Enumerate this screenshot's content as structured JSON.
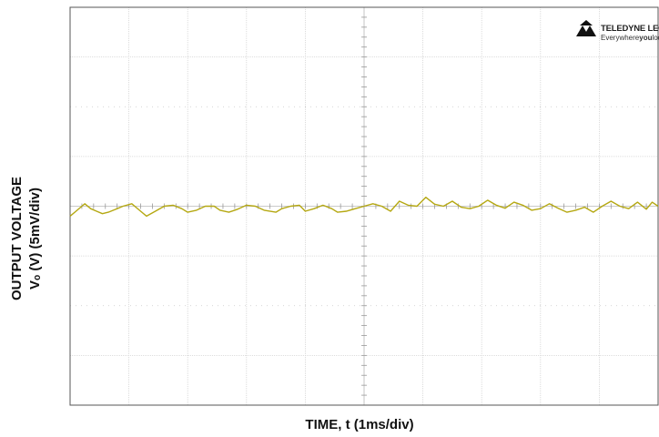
{
  "chart_data": {
    "type": "line",
    "title": "",
    "xlabel": "TIME, t (1ms/div)",
    "ylabel_lines": [
      "OUTPUT VOLTAGE",
      "Vₒ (V) (5mV/div)"
    ],
    "x_divisions": 10,
    "y_divisions": 8,
    "xlim_ms": [
      0,
      10
    ],
    "ylim_div": [
      -4,
      4
    ],
    "grid": true,
    "trace_color": "#b5a812",
    "series": [
      {
        "x_ms": [
          0.0,
          0.1,
          0.2,
          0.25,
          0.35,
          0.45,
          0.55,
          0.65,
          0.8,
          0.9,
          1.05,
          1.2,
          1.3,
          1.45,
          1.6,
          1.75,
          1.9,
          2.0,
          2.15,
          2.3,
          2.45,
          2.55,
          2.7,
          2.85,
          3.0,
          3.15,
          3.3,
          3.5,
          3.6,
          3.75,
          3.9,
          4.0,
          4.15,
          4.3,
          4.45,
          4.55,
          4.7,
          4.85,
          5.0,
          5.15,
          5.3,
          5.45,
          5.6,
          5.75,
          5.9,
          6.05,
          6.2,
          6.35,
          6.5,
          6.65,
          6.8,
          6.95,
          7.1,
          7.25,
          7.4,
          7.55,
          7.7,
          7.85,
          8.0,
          8.15,
          8.3,
          8.45,
          8.6,
          8.75,
          8.9,
          9.05,
          9.2,
          9.35,
          9.5,
          9.65,
          9.8,
          9.9,
          10.0
        ],
        "y_div": [
          -0.2,
          -0.1,
          0.0,
          0.05,
          -0.05,
          -0.1,
          -0.15,
          -0.12,
          -0.05,
          0.0,
          0.05,
          -0.1,
          -0.2,
          -0.1,
          0.0,
          0.02,
          -0.05,
          -0.12,
          -0.08,
          0.0,
          0.0,
          -0.08,
          -0.12,
          -0.06,
          0.02,
          0.0,
          -0.08,
          -0.12,
          -0.05,
          0.0,
          0.02,
          -0.1,
          -0.05,
          0.02,
          -0.05,
          -0.12,
          -0.1,
          -0.05,
          0.0,
          0.05,
          0.0,
          -0.1,
          0.1,
          0.02,
          0.0,
          0.18,
          0.04,
          0.0,
          0.1,
          -0.02,
          -0.05,
          0.0,
          0.12,
          0.02,
          -0.04,
          0.08,
          0.02,
          -0.08,
          -0.05,
          0.05,
          -0.04,
          -0.12,
          -0.08,
          -0.02,
          -0.12,
          0.0,
          0.1,
          0.0,
          -0.05,
          0.08,
          -0.06,
          0.08,
          0.0
        ]
      }
    ]
  },
  "brand": {
    "name": "TELEDYNE LECROY",
    "tagline_prefix": "Everywhere",
    "tagline_bold": "you",
    "tagline_suffix": "look"
  }
}
